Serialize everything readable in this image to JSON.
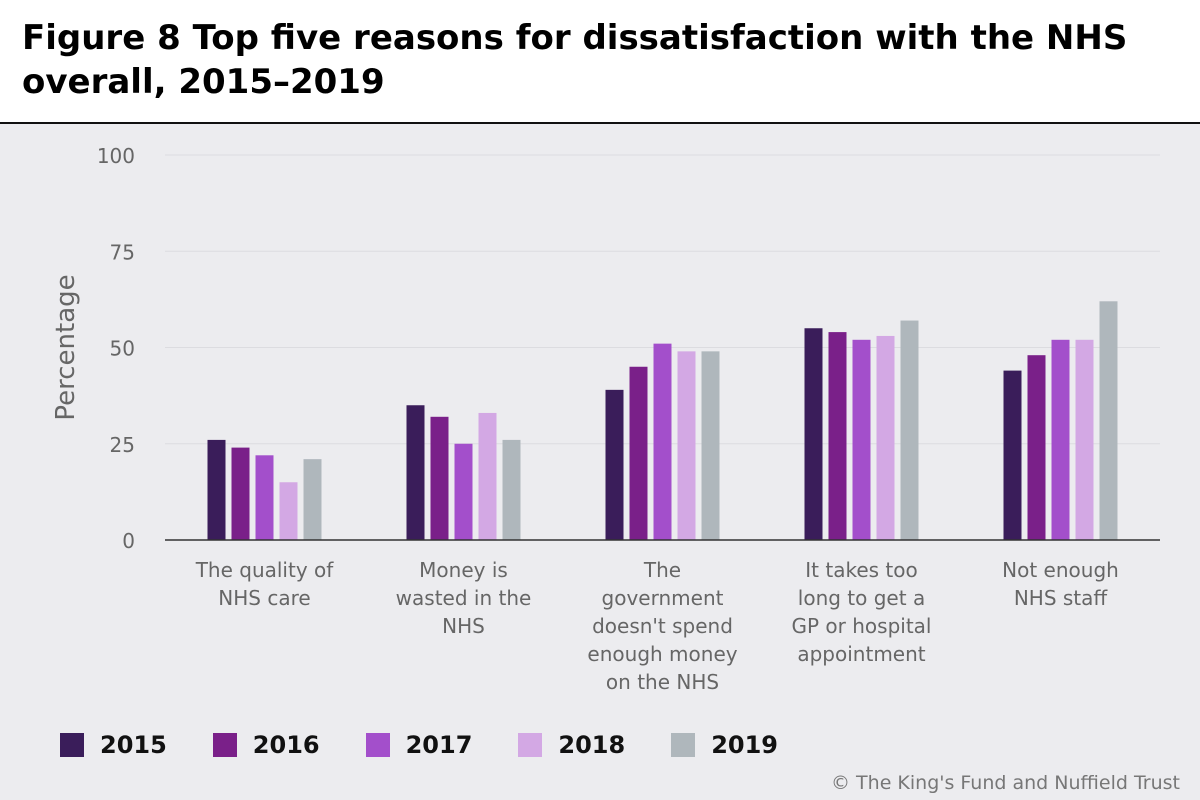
{
  "title": "Figure 8 Top five reasons for dissatisfaction with the NHS overall, 2015–2019",
  "copyright": "© The King's Fund and Nuffield Trust",
  "chart_data": {
    "type": "bar",
    "ylabel": "Percentage",
    "xlabel": "",
    "ylim": [
      0,
      100
    ],
    "yticks": [
      0,
      25,
      50,
      75,
      100
    ],
    "grid": true,
    "legend_position": "bottom",
    "categories": [
      [
        "The quality of",
        "NHS care"
      ],
      [
        "Money is",
        "wasted in the",
        "NHS"
      ],
      [
        "The",
        "government",
        "doesn't spend",
        "enough money",
        "on the NHS"
      ],
      [
        "It takes too",
        "long to get a",
        "GP or hospital",
        "appointment"
      ],
      [
        "Not enough",
        "NHS staff"
      ]
    ],
    "series": [
      {
        "name": "2015",
        "color": "#3a1d5a",
        "values": [
          26,
          35,
          39,
          55,
          44
        ]
      },
      {
        "name": "2016",
        "color": "#7a2089",
        "values": [
          24,
          32,
          45,
          54,
          48
        ]
      },
      {
        "name": "2017",
        "color": "#a34fcb",
        "values": [
          22,
          25,
          51,
          52,
          52
        ]
      },
      {
        "name": "2018",
        "color": "#d3a8e4",
        "values": [
          15,
          33,
          49,
          53,
          52
        ]
      },
      {
        "name": "2019",
        "color": "#afb7bc",
        "values": [
          21,
          26,
          49,
          57,
          62
        ]
      }
    ]
  }
}
